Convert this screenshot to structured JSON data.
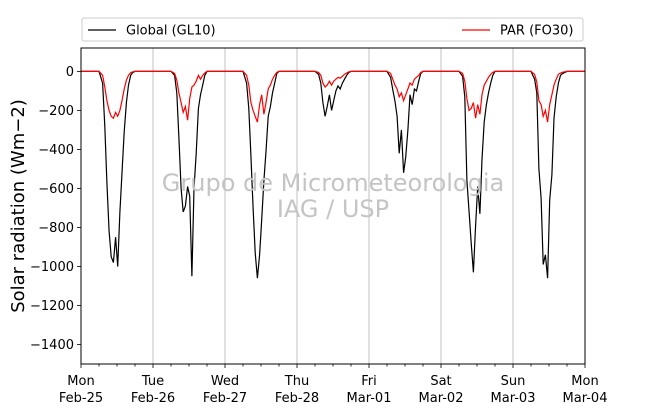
{
  "chart_data": {
    "type": "line",
    "ylabel": "Solar radiation (Wm−2)",
    "ylim": [
      -1500,
      120
    ],
    "y_ticks": [
      0,
      -200,
      -400,
      -600,
      -800,
      -1000,
      -1200,
      -1400
    ],
    "xlim_days": [
      0,
      7
    ],
    "x_ticks": [
      {
        "day": "Mon",
        "date": "Feb-25"
      },
      {
        "day": "Tue",
        "date": "Feb-26"
      },
      {
        "day": "Wed",
        "date": "Feb-27"
      },
      {
        "day": "Thu",
        "date": "Feb-28"
      },
      {
        "day": "Fri",
        "date": "Mar-01"
      },
      {
        "day": "Sat",
        "date": "Mar-02"
      },
      {
        "day": "Sun",
        "date": "Mar-03"
      },
      {
        "day": "Mon",
        "date": "Mar-04"
      }
    ],
    "grid": "vertical",
    "legend_position": "top",
    "watermark": [
      "Grupo de Micrometeorologia",
      "IAG / USP"
    ],
    "series": [
      {
        "name": "Global (GL10)",
        "color": "#000000",
        "x": [
          0.25,
          0.3,
          0.33,
          0.36,
          0.39,
          0.42,
          0.45,
          0.48,
          0.51,
          0.54,
          0.57,
          0.6,
          0.63,
          0.66,
          0.69,
          0.72,
          0.75,
          1.25,
          1.3,
          1.33,
          1.36,
          1.39,
          1.42,
          1.45,
          1.48,
          1.51,
          1.54,
          1.57,
          1.6,
          1.63,
          1.66,
          1.69,
          1.72,
          1.75,
          2.25,
          2.3,
          2.33,
          2.36,
          2.39,
          2.42,
          2.45,
          2.48,
          2.51,
          2.54,
          2.57,
          2.6,
          2.63,
          2.66,
          2.69,
          2.72,
          2.75,
          3.25,
          3.3,
          3.33,
          3.36,
          3.39,
          3.42,
          3.45,
          3.48,
          3.51,
          3.54,
          3.57,
          3.6,
          3.63,
          3.66,
          3.69,
          3.72,
          3.75,
          4.25,
          4.3,
          4.33,
          4.36,
          4.39,
          4.42,
          4.45,
          4.48,
          4.51,
          4.54,
          4.57,
          4.6,
          4.63,
          4.66,
          4.69,
          4.72,
          4.75,
          5.25,
          5.3,
          5.33,
          5.36,
          5.39,
          5.42,
          5.45,
          5.48,
          5.51,
          5.54,
          5.57,
          5.6,
          5.63,
          5.66,
          5.69,
          5.72,
          5.75,
          6.25,
          6.3,
          6.33,
          6.36,
          6.39,
          6.42,
          6.45,
          6.48,
          6.51,
          6.54,
          6.57,
          6.6,
          6.63,
          6.66,
          6.69,
          6.72,
          6.75
        ],
        "y": [
          0,
          -60,
          -280,
          -570,
          -820,
          -950,
          -980,
          -850,
          -1000,
          -720,
          -520,
          -310,
          -160,
          -70,
          -20,
          -5,
          0,
          0,
          -20,
          -110,
          -340,
          -600,
          -720,
          -690,
          -590,
          -640,
          -1050,
          -600,
          -420,
          -190,
          -120,
          -70,
          -20,
          0,
          0,
          -60,
          -190,
          -430,
          -700,
          -930,
          -1060,
          -940,
          -760,
          -560,
          -410,
          -230,
          -180,
          -110,
          -60,
          -10,
          0,
          0,
          -15,
          -60,
          -160,
          -230,
          -180,
          -120,
          -200,
          -150,
          -100,
          -75,
          -90,
          -60,
          -40,
          -20,
          -5,
          0,
          0,
          -30,
          -95,
          -150,
          -230,
          -420,
          -300,
          -520,
          -440,
          -300,
          -120,
          -170,
          -90,
          -100,
          -50,
          -10,
          0,
          0,
          -25,
          -130,
          -560,
          -720,
          -880,
          -1030,
          -790,
          -590,
          -730,
          -450,
          -260,
          -170,
          -110,
          -60,
          -20,
          0,
          0,
          -40,
          -110,
          -500,
          -650,
          -990,
          -940,
          -1060,
          -660,
          -530,
          -240,
          -130,
          -60,
          -20,
          -10,
          -5,
          0
        ]
      },
      {
        "name": "PAR (FO30)",
        "color": "#ff0000",
        "x": [
          0.25,
          0.3,
          0.33,
          0.36,
          0.39,
          0.42,
          0.45,
          0.48,
          0.51,
          0.54,
          0.57,
          0.6,
          0.63,
          0.66,
          0.69,
          0.72,
          0.75,
          1.25,
          1.3,
          1.33,
          1.36,
          1.39,
          1.42,
          1.45,
          1.48,
          1.51,
          1.54,
          1.57,
          1.6,
          1.63,
          1.66,
          1.69,
          1.72,
          1.75,
          2.25,
          2.3,
          2.33,
          2.36,
          2.39,
          2.42,
          2.45,
          2.48,
          2.51,
          2.54,
          2.57,
          2.6,
          2.63,
          2.66,
          2.69,
          2.72,
          2.75,
          3.25,
          3.3,
          3.33,
          3.36,
          3.39,
          3.42,
          3.45,
          3.48,
          3.51,
          3.54,
          3.57,
          3.6,
          3.63,
          3.66,
          3.69,
          3.72,
          3.75,
          4.25,
          4.3,
          4.33,
          4.36,
          4.39,
          4.42,
          4.45,
          4.48,
          4.51,
          4.54,
          4.57,
          4.6,
          4.63,
          4.66,
          4.69,
          4.72,
          4.75,
          5.25,
          5.3,
          5.33,
          5.36,
          5.39,
          5.42,
          5.45,
          5.48,
          5.51,
          5.54,
          5.57,
          5.6,
          5.63,
          5.66,
          5.69,
          5.72,
          5.75,
          6.25,
          6.3,
          6.33,
          6.36,
          6.39,
          6.42,
          6.45,
          6.48,
          6.51,
          6.54,
          6.57,
          6.6,
          6.63,
          6.66,
          6.69,
          6.72,
          6.75
        ],
        "y": [
          0,
          -20,
          -80,
          -150,
          -200,
          -230,
          -240,
          -210,
          -230,
          -200,
          -150,
          -90,
          -45,
          -20,
          -6,
          -2,
          0,
          0,
          -10,
          -45,
          -110,
          -160,
          -210,
          -180,
          -250,
          -140,
          -80,
          -70,
          -50,
          -20,
          -40,
          -20,
          -8,
          0,
          0,
          -20,
          -70,
          -160,
          -200,
          -230,
          -260,
          -170,
          -120,
          -220,
          -160,
          -90,
          -70,
          -40,
          -20,
          -5,
          0,
          0,
          -5,
          -20,
          -60,
          -80,
          -70,
          -50,
          -70,
          -50,
          -40,
          -30,
          -35,
          -25,
          -15,
          -8,
          -2,
          0,
          0,
          -10,
          -40,
          -70,
          -90,
          -130,
          -110,
          -150,
          -120,
          -90,
          -60,
          -70,
          -40,
          -30,
          -20,
          -5,
          0,
          0,
          -10,
          -50,
          -140,
          -200,
          -190,
          -160,
          -240,
          -170,
          -220,
          -120,
          -70,
          -50,
          -30,
          -15,
          -5,
          0,
          0,
          -15,
          -55,
          -150,
          -170,
          -230,
          -200,
          -260,
          -170,
          -120,
          -70,
          -40,
          -15,
          -8,
          -4,
          -2,
          0
        ]
      }
    ]
  }
}
